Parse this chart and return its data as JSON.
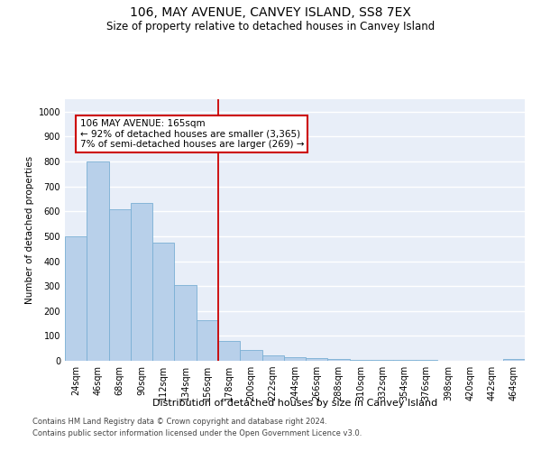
{
  "title": "106, MAY AVENUE, CANVEY ISLAND, SS8 7EX",
  "subtitle": "Size of property relative to detached houses in Canvey Island",
  "xlabel": "Distribution of detached houses by size in Canvey Island",
  "ylabel": "Number of detached properties",
  "categories": [
    "24sqm",
    "46sqm",
    "68sqm",
    "90sqm",
    "112sqm",
    "134sqm",
    "156sqm",
    "178sqm",
    "200sqm",
    "222sqm",
    "244sqm",
    "266sqm",
    "288sqm",
    "310sqm",
    "332sqm",
    "354sqm",
    "376sqm",
    "398sqm",
    "420sqm",
    "442sqm",
    "464sqm"
  ],
  "values": [
    500,
    800,
    610,
    635,
    475,
    305,
    162,
    78,
    45,
    22,
    15,
    10,
    8,
    5,
    3,
    2,
    2,
    1,
    1,
    1,
    7
  ],
  "bar_color": "#b8d0ea",
  "bar_edge_color": "#7aafd4",
  "vline_x": 6.5,
  "vline_color": "#cc0000",
  "annotation_text": "106 MAY AVENUE: 165sqm\n← 92% of detached houses are smaller (3,365)\n7% of semi-detached houses are larger (269) →",
  "annotation_box_color": "#ffffff",
  "annotation_box_edge_color": "#cc0000",
  "ylim": [
    0,
    1050
  ],
  "yticks": [
    0,
    100,
    200,
    300,
    400,
    500,
    600,
    700,
    800,
    900,
    1000
  ],
  "background_color": "#e8eef8",
  "grid_color": "#ffffff",
  "footer_line1": "Contains HM Land Registry data © Crown copyright and database right 2024.",
  "footer_line2": "Contains public sector information licensed under the Open Government Licence v3.0.",
  "title_fontsize": 10,
  "subtitle_fontsize": 8.5,
  "xlabel_fontsize": 8,
  "ylabel_fontsize": 7.5,
  "tick_fontsize": 7,
  "footer_fontsize": 6,
  "annotation_fontsize": 7.5
}
